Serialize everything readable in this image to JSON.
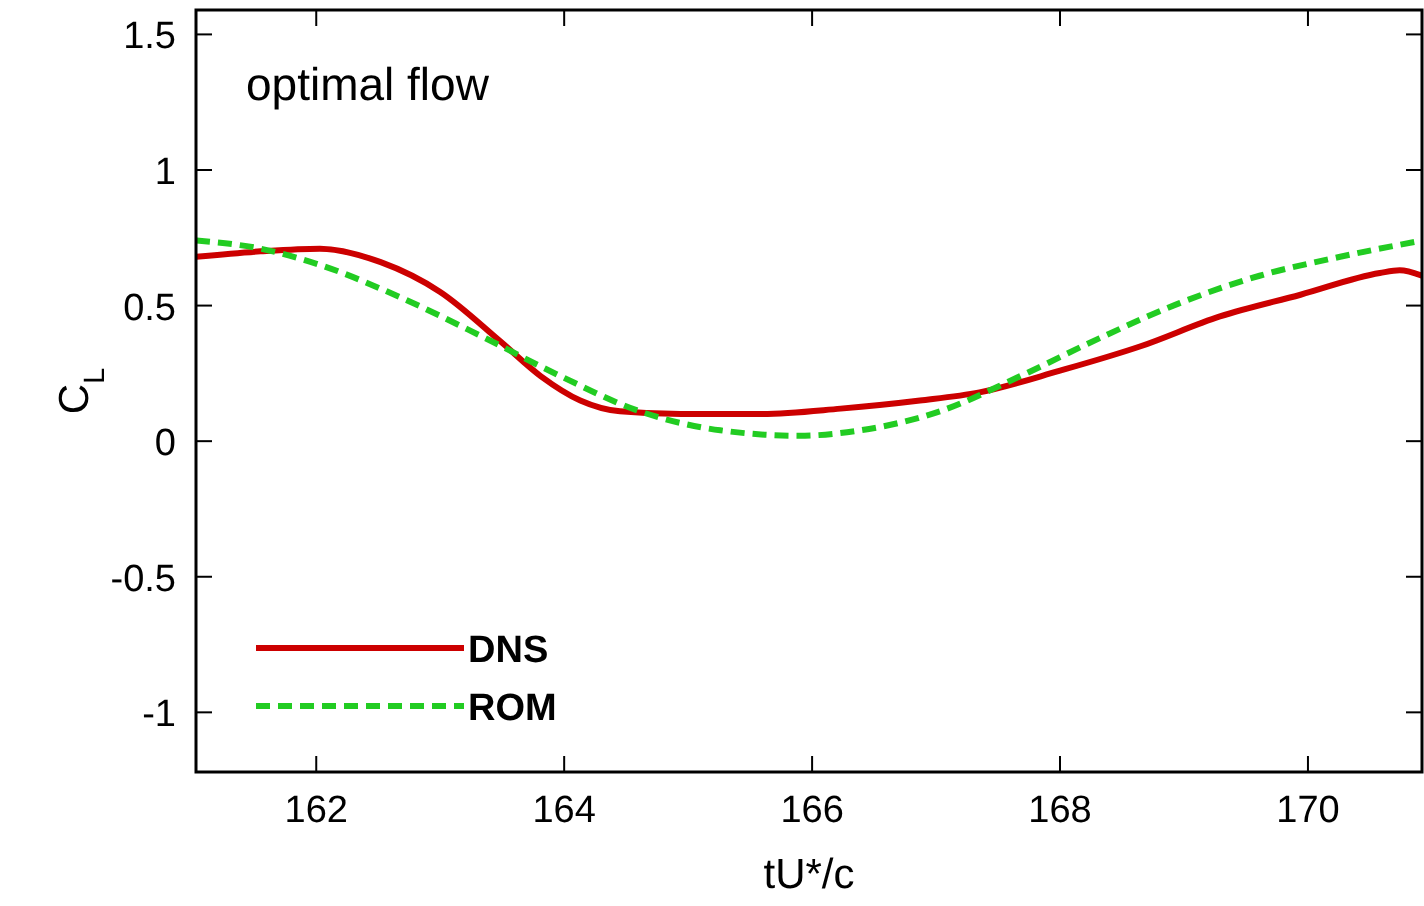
{
  "chart_data": {
    "type": "line",
    "xlabel": "tU*/c",
    "ylabel": "C$_{L}$",
    "annotations": [
      "optimal flow"
    ],
    "xlim": [
      161.03,
      170.92
    ],
    "xticks": [
      162,
      164,
      166,
      168,
      170
    ],
    "ylim": [
      -1.22,
      1.59
    ],
    "yticks": [
      -1,
      -0.5,
      0,
      0.5,
      1,
      1.5
    ],
    "legend": "bottom left",
    "grid": false,
    "marker": "none",
    "series": [
      {
        "name": "DNS",
        "color": "#cc0000",
        "line_style": "solid",
        "x": [
          161.03,
          161.55,
          162.03,
          162.52,
          163.0,
          163.48,
          163.81,
          164.13,
          164.45,
          164.94,
          165.58,
          166.23,
          166.87,
          167.35,
          168.0,
          168.65,
          169.29,
          169.94,
          170.58,
          170.74,
          170.92
        ],
        "values": [
          0.68,
          0.7,
          0.71,
          0.66,
          0.55,
          0.37,
          0.24,
          0.15,
          0.11,
          0.1,
          0.1,
          0.12,
          0.15,
          0.18,
          0.26,
          0.35,
          0.46,
          0.54,
          0.62,
          0.63,
          0.61
        ]
      },
      {
        "name": "ROM",
        "color": "#22cc22",
        "line_style": "dashed",
        "x": [
          161.03,
          161.55,
          162.03,
          162.68,
          163.32,
          163.97,
          164.61,
          165.26,
          165.9,
          166.39,
          167.03,
          167.68,
          168.32,
          168.97,
          169.61,
          170.26,
          170.92
        ],
        "values": [
          0.74,
          0.71,
          0.65,
          0.53,
          0.39,
          0.24,
          0.11,
          0.04,
          0.02,
          0.04,
          0.11,
          0.24,
          0.38,
          0.51,
          0.61,
          0.68,
          0.74
        ]
      }
    ]
  }
}
